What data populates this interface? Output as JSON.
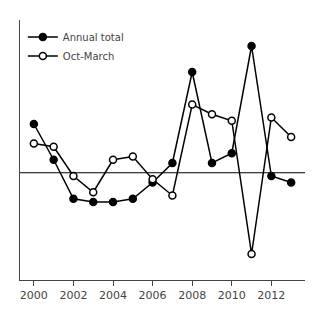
{
  "chart_data": {
    "type": "line",
    "x": [
      2000,
      2001,
      2002,
      2003,
      2004,
      2005,
      2006,
      2007,
      2008,
      2009,
      2010,
      2011,
      2012,
      2013
    ],
    "series": [
      {
        "name": "Annual total",
        "color": "#000000",
        "marker": "filled",
        "values": [
          14.0,
          8.5,
          2.5,
          2.0,
          2.0,
          2.5,
          5.0,
          8.0,
          22.0,
          8.0,
          9.5,
          26.0,
          6.0,
          5.0
        ]
      },
      {
        "name": "Oct-March",
        "color": "#000000",
        "marker": "open",
        "values": [
          11.0,
          10.5,
          6.0,
          3.5,
          8.5,
          9.0,
          5.5,
          3.0,
          17.0,
          15.5,
          14.5,
          -6.0,
          15.0,
          12.0
        ]
      }
    ],
    "hline": 6.5,
    "xlim": [
      1999.3,
      2013.7
    ],
    "xticks": [
      2000,
      2002,
      2004,
      2006,
      2008,
      2010,
      2012
    ],
    "ylim": [
      -10,
      30
    ],
    "tick_labels": "x",
    "grid": false,
    "legend": "upper left"
  }
}
